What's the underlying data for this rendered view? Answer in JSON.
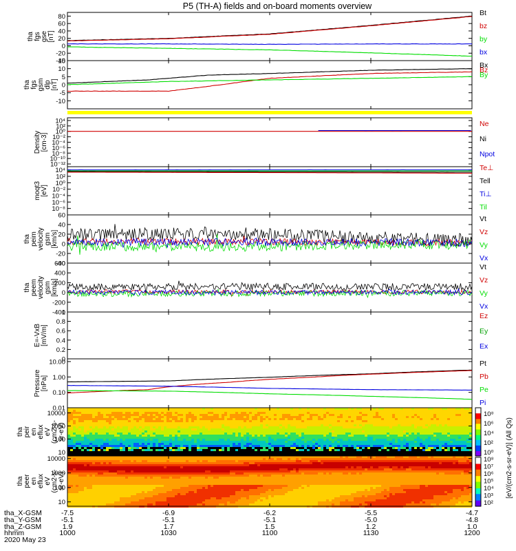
{
  "title": "P5 (TH-A) fields and on-board moments overview",
  "date_label": "2020 May 23",
  "colors": {
    "black": "#000000",
    "red": "#d00000",
    "green": "#00dd00",
    "blue": "#0000e0",
    "yellow": "#ffff00"
  },
  "ephemeris": {
    "row_labels": [
      "tha_X-GSM",
      "tha_Y-GSM",
      "tha_Z-GSM",
      "hhmm"
    ],
    "columns": [
      [
        "-7.5",
        "-5.1",
        "1.9",
        "1000"
      ],
      [
        "-6.9",
        "-5.1",
        "1.7",
        "1030"
      ],
      [
        "-6.2",
        "-5.1",
        "1.5",
        "1100"
      ],
      [
        "-5.5",
        "-5.0",
        "1.2",
        "1130"
      ],
      [
        "-4.7",
        "-4.8",
        "1.0",
        "1200"
      ]
    ]
  },
  "chart_data": {
    "type": "line",
    "title": "P5 (TH-A) fields and on-board moments overview",
    "x": {
      "ticks": [
        "1000",
        "1030",
        "1100",
        "1130",
        "1200"
      ],
      "range": [
        "10:00",
        "12:00"
      ]
    },
    "panels": [
      {
        "id": "fgs_gse",
        "ylabel_lines": [
          "tha",
          "fgs",
          "gse",
          "[nT]"
        ],
        "ylim": [
          -40,
          90
        ],
        "ticks": [
          80,
          60,
          40,
          20,
          0,
          -20,
          -40
        ],
        "series": [
          {
            "name": "Bt",
            "color": "#000000",
            "points": [
              [
                0,
                14
              ],
              [
                0.25,
                20
              ],
              [
                0.5,
                32
              ],
              [
                0.75,
                55
              ],
              [
                1,
                80
              ]
            ]
          },
          {
            "name": "bz",
            "color": "#d00000",
            "points": [
              [
                0,
                13
              ],
              [
                0.25,
                19
              ],
              [
                0.5,
                31
              ],
              [
                0.75,
                54
              ],
              [
                1,
                79
              ]
            ]
          },
          {
            "name": "by",
            "color": "#00dd00",
            "points": [
              [
                0,
                -3
              ],
              [
                0.25,
                -7
              ],
              [
                0.5,
                -11
              ],
              [
                0.75,
                -19
              ],
              [
                1,
                -28
              ]
            ]
          },
          {
            "name": "bx",
            "color": "#0000e0",
            "points": [
              [
                0,
                5
              ],
              [
                0.25,
                5
              ],
              [
                0.5,
                4
              ],
              [
                0.75,
                5
              ],
              [
                1,
                5
              ]
            ]
          }
        ],
        "legend": [
          "Bt",
          "bz",
          "by",
          "bx"
        ]
      },
      {
        "id": "fgs_gsm",
        "ylabel_lines": [
          "tha",
          "fgs",
          "gsm",
          "dlp",
          "[nT]"
        ],
        "ylim": [
          -15,
          15
        ],
        "ticks": [
          15,
          10,
          5,
          0,
          -5,
          -10
        ],
        "series": [
          {
            "name": "Bx",
            "color": "#000000",
            "points": [
              [
                0,
                1
              ],
              [
                0.2,
                3
              ],
              [
                0.35,
                6
              ],
              [
                0.5,
                7
              ],
              [
                0.75,
                9
              ],
              [
                1,
                10
              ]
            ]
          },
          {
            "name": "Bz",
            "color": "#d00000",
            "points": [
              [
                0,
                -4
              ],
              [
                0.25,
                -4
              ],
              [
                0.38,
                0
              ],
              [
                0.5,
                4
              ],
              [
                0.75,
                7
              ],
              [
                1,
                8
              ]
            ]
          },
          {
            "name": "By",
            "color": "#00dd00",
            "points": [
              [
                0,
                0
              ],
              [
                0.25,
                2
              ],
              [
                0.5,
                3
              ],
              [
                0.75,
                4
              ],
              [
                1,
                5
              ]
            ]
          }
        ],
        "legend": [
          "Bx",
          "Bz",
          "By"
        ]
      },
      {
        "id": "density",
        "ylabel_lines": [
          "Density",
          "[cm-3]"
        ],
        "log": true,
        "ylim": [
          1e-13,
          100000.0
        ],
        "ticks": [
          [
            10000.0,
            "10⁴"
          ],
          [
            100.0,
            "10²"
          ],
          [
            1.0,
            "10⁰"
          ],
          [
            0.01,
            "10⁻²"
          ],
          [
            0.0001,
            "10⁻⁴"
          ],
          [
            1e-06,
            "10⁻⁶"
          ],
          [
            1e-08,
            "10⁻⁸"
          ],
          [
            1e-10,
            "10⁻¹⁰"
          ],
          [
            1e-12,
            "10⁻¹²"
          ]
        ],
        "series": [
          {
            "name": "Ne",
            "color": "#d00000",
            "points": [
              [
                0,
                1
              ],
              [
                1,
                1
              ]
            ]
          },
          {
            "name": "Npot",
            "color": "#0000e0",
            "points": [
              [
                0.62,
                2
              ],
              [
                1,
                2
              ]
            ]
          }
        ],
        "legend": [
          "Ne",
          "Ni",
          "Npot"
        ]
      },
      {
        "id": "moqt3",
        "ylabel_lines": [
          "moqt3",
          "[eV]"
        ],
        "log": true,
        "ylim": [
          1e-10,
          100000.0
        ],
        "ticks": [
          [
            10000.0,
            "10⁴"
          ],
          [
            100.0,
            "10²"
          ],
          [
            1.0,
            "10⁰"
          ],
          [
            0.01,
            "10⁻²"
          ],
          [
            0.0001,
            "10⁻⁴"
          ],
          [
            1e-06,
            "10⁻⁶"
          ],
          [
            1e-08,
            "10⁻⁸"
          ]
        ],
        "series": [
          {
            "name": "Ti⊥",
            "color": "#0000e0",
            "points": [
              [
                0,
                10000
              ],
              [
                1,
                10000
              ]
            ]
          },
          {
            "name": "Til",
            "color": "#00dd00",
            "points": [
              [
                0,
                5000
              ],
              [
                1,
                5000
              ]
            ]
          },
          {
            "name": "Tell",
            "color": "#000000",
            "points": [
              [
                0,
                3000
              ],
              [
                1,
                2000
              ]
            ]
          },
          {
            "name": "Te⊥",
            "color": "#d00000",
            "points": [
              [
                0,
                2000
              ],
              [
                1,
                900
              ]
            ]
          }
        ],
        "legend": [
          "Te⊥",
          "Tell",
          "Ti⊥",
          "Til"
        ]
      },
      {
        "id": "peim_vel",
        "ylabel_lines": [
          "tha",
          "peim",
          "velocity",
          "gsm",
          "[km/s]"
        ],
        "ylim": [
          -40,
          60
        ],
        "ticks": [
          60,
          40,
          20,
          0,
          -20,
          -40
        ],
        "noisy": true,
        "series": [
          {
            "name": "Vt",
            "color": "#000000",
            "points": [
              [
                0,
                18
              ],
              [
                0.4,
                22
              ],
              [
                0.5,
                18
              ],
              [
                0.75,
                12
              ],
              [
                1,
                7
              ]
            ],
            "noise": 14
          },
          {
            "name": "Vz",
            "color": "#d00000",
            "points": [
              [
                0,
                5
              ],
              [
                0.5,
                4
              ],
              [
                1,
                2
              ]
            ],
            "noise": 7
          },
          {
            "name": "Vy",
            "color": "#00dd00",
            "points": [
              [
                0,
                -5
              ],
              [
                0.4,
                -8
              ],
              [
                0.6,
                -3
              ],
              [
                1,
                -1
              ]
            ],
            "noise": 10
          },
          {
            "name": "Vx",
            "color": "#0000e0",
            "points": [
              [
                0,
                3
              ],
              [
                0.5,
                4
              ],
              [
                1,
                2
              ]
            ],
            "noise": 8
          }
        ],
        "legend": [
          "Vt",
          "Vz",
          "Vy",
          "Vx"
        ]
      },
      {
        "id": "peem_vel",
        "ylabel_lines": [
          "tha",
          "peem",
          "velocity",
          "gsm",
          "[km/s]"
        ],
        "ylim": [
          -400,
          600
        ],
        "ticks": [
          600,
          400,
          200,
          0,
          -200,
          -400
        ],
        "noisy": true,
        "series": [
          {
            "name": "Vt",
            "color": "#000000",
            "points": [
              [
                0,
                110
              ],
              [
                0.5,
                120
              ],
              [
                1,
                115
              ]
            ],
            "noise": 70
          },
          {
            "name": "Vz",
            "color": "#d00000",
            "points": [
              [
                0,
                20
              ],
              [
                1,
                10
              ]
            ],
            "noise": 40
          },
          {
            "name": "Vy",
            "color": "#00dd00",
            "points": [
              [
                0,
                -30
              ],
              [
                0.5,
                -20
              ],
              [
                1,
                -10
              ]
            ],
            "noise": 60
          },
          {
            "name": "Vx",
            "color": "#0000e0",
            "points": [
              [
                0,
                0
              ],
              [
                1,
                0
              ]
            ],
            "noise": 50
          }
        ],
        "legend": [
          "Vt",
          "Vz",
          "Vy",
          "Vx"
        ]
      },
      {
        "id": "efield",
        "ylabel_lines": [
          "E=-VxB",
          "[mV/m]"
        ],
        "ylim": [
          0,
          1
        ],
        "ticks": [
          1.0,
          0.8,
          0.6,
          0.4,
          0.2,
          0.0
        ],
        "series": [],
        "legend": [
          "Ez",
          "Ey",
          "Ex"
        ]
      },
      {
        "id": "pressure",
        "ylabel_lines": [
          "Pressure",
          "[nPa]"
        ],
        "log": true,
        "ylim": [
          0.01,
          15
        ],
        "ticks": [
          [
            10,
            "10.00"
          ],
          [
            1,
            "1.00"
          ],
          [
            0.1,
            "0.10"
          ],
          [
            0.01,
            "0.01"
          ]
        ],
        "series": [
          {
            "name": "Pt",
            "color": "#000000",
            "points": [
              [
                0,
                0.48
              ],
              [
                0.25,
                0.55
              ],
              [
                0.5,
                0.95
              ],
              [
                0.75,
                1.6
              ],
              [
                1,
                2.8
              ]
            ]
          },
          {
            "name": "Pb",
            "color": "#d00000",
            "points": [
              [
                0,
                0.09
              ],
              [
                0.2,
                0.15
              ],
              [
                0.4,
                0.45
              ],
              [
                0.6,
                0.95
              ],
              [
                0.8,
                1.7
              ],
              [
                1,
                2.6
              ]
            ]
          },
          {
            "name": "Pe",
            "color": "#00dd00",
            "points": [
              [
                0,
                0.13
              ],
              [
                0.25,
                0.12
              ],
              [
                0.5,
                0.08
              ],
              [
                0.75,
                0.055
              ],
              [
                1,
                0.035
              ]
            ]
          },
          {
            "name": "Pi",
            "color": "#0000e0",
            "points": [
              [
                0,
                0.28
              ],
              [
                0.25,
                0.25
              ],
              [
                0.5,
                0.18
              ],
              [
                0.75,
                0.15
              ],
              [
                1,
                0.14
              ]
            ]
          }
        ],
        "legend": [
          "Pt",
          "Pb",
          "Pe",
          "Pi"
        ]
      },
      {
        "id": "peir_spec",
        "type": "heatmap",
        "ylabel_lines": [
          "tha",
          "peir",
          "en",
          "eflux",
          "eV",
          "(cm2-s-",
          "sr-eV)"
        ],
        "log": true,
        "ylim": [
          5,
          25000
        ],
        "ticks": [
          [
            10000,
            "10000"
          ],
          [
            1000,
            "1000"
          ],
          [
            100,
            "100"
          ],
          [
            10,
            "10"
          ]
        ]
      },
      {
        "id": "peer_spec",
        "type": "heatmap",
        "ylabel_lines": [
          "tha",
          "peer",
          "en",
          "eflux",
          "eV",
          "(cm2-s-",
          "sr-eV)"
        ],
        "log": true,
        "ylim": [
          5,
          15000
        ],
        "ticks": [
          [
            10000,
            "10000"
          ],
          [
            1000,
            "1000"
          ],
          [
            100,
            "100"
          ],
          [
            10,
            "10"
          ]
        ]
      }
    ],
    "colorbar": {
      "label": "[eV/(cm2-s-sr-eV)] (All Qs)",
      "ticks_top": [
        "10⁸",
        "10⁶",
        "10⁴",
        "10²",
        "10⁰"
      ],
      "ticks_bottom": [
        "10⁸",
        "10⁷",
        "10⁶",
        "10⁵",
        "10⁴",
        "10³",
        "10²"
      ]
    }
  }
}
